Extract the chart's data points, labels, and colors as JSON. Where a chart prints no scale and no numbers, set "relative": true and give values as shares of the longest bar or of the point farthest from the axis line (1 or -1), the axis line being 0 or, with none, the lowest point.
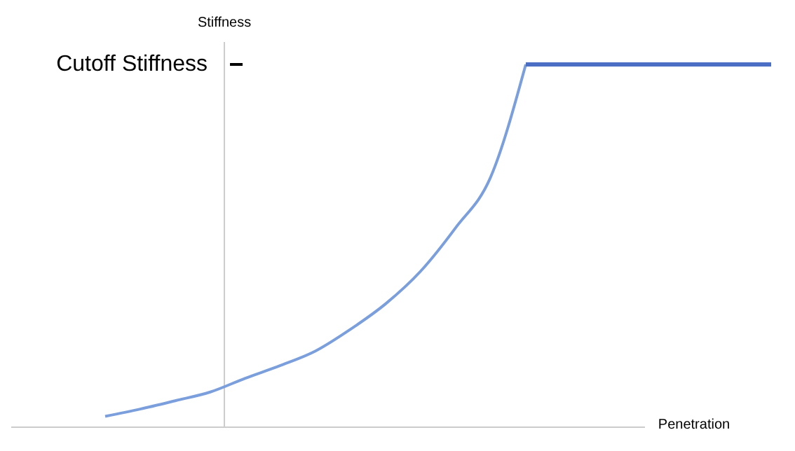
{
  "chart_data": {
    "type": "line",
    "relative": true,
    "xlabel": "Penetration",
    "ylabel": "Stiffness",
    "categories": [
      null,
      null,
      null,
      null,
      null,
      null,
      null,
      null,
      null,
      null,
      null,
      null,
      null,
      null,
      null,
      null,
      null,
      null,
      null,
      null
    ],
    "series": [
      {
        "color": "#7b9fdc",
        "values": [
          0.03,
          0.05,
          0.073,
          0.097,
          0.135,
          0.17,
          0.21,
          0.27,
          0.34,
          0.43,
          0.55,
          0.69,
          1,
          null,
          null,
          null,
          null,
          null,
          null,
          null
        ]
      },
      {
        "color": "#4a6fc4",
        "values": [
          null,
          null,
          null,
          null,
          null,
          null,
          null,
          null,
          null,
          null,
          null,
          null,
          1,
          1,
          1,
          1,
          1,
          1,
          1,
          1
        ]
      }
    ],
    "annotations": [
      "Cutoff Stiffness"
    ],
    "marker": "none",
    "line_style": "solid"
  }
}
